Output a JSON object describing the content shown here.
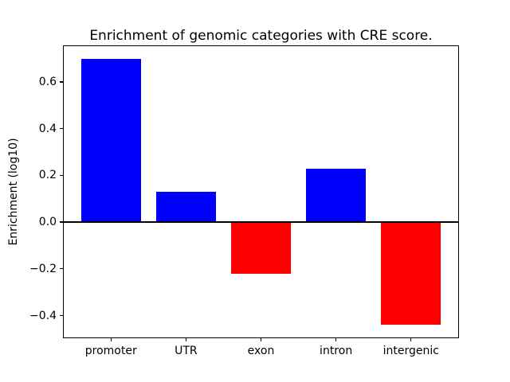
{
  "title": "Enrichment of genomic categories with CRE score.",
  "chart_data": {
    "type": "bar",
    "title": "Enrichment of genomic categories with CRE score.",
    "xlabel": "",
    "ylabel": "Enrichment (log10)",
    "categories": [
      "promoter",
      "UTR",
      "exon",
      "intron",
      "intergenic"
    ],
    "values": [
      0.7,
      0.13,
      -0.22,
      0.23,
      -0.44
    ],
    "bar_colors": [
      "#0000ff",
      "#0000ff",
      "#ff0000",
      "#0000ff",
      "#ff0000"
    ],
    "positive_color": "#0000ff",
    "negative_color": "#ff0000",
    "bar_width": 0.8,
    "xlim": [
      -0.64,
      4.64
    ],
    "ylim": [
      -0.497,
      0.757
    ],
    "yticks": [
      0.6,
      0.4,
      0.2,
      0.0,
      -0.2,
      -0.4
    ],
    "ytick_labels": [
      "0.6",
      "0.4",
      "0.2",
      "0.0",
      "−0.2",
      "−0.4"
    ],
    "zero_line": true,
    "zero_line_color": "#000000",
    "grid": false,
    "legend": null,
    "background_color": "#ffffff",
    "text_color": "#000000"
  }
}
